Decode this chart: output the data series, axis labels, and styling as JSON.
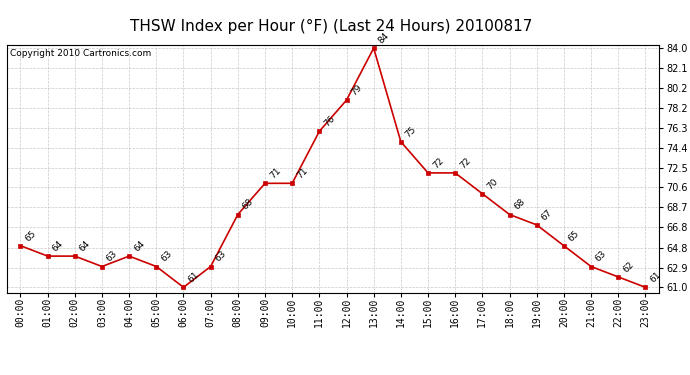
{
  "title": "THSW Index per Hour (°F) (Last 24 Hours) 20100817",
  "copyright": "Copyright 2010 Cartronics.com",
  "hours": [
    "00:00",
    "01:00",
    "02:00",
    "03:00",
    "04:00",
    "05:00",
    "06:00",
    "07:00",
    "08:00",
    "09:00",
    "10:00",
    "11:00",
    "12:00",
    "13:00",
    "14:00",
    "15:00",
    "16:00",
    "17:00",
    "18:00",
    "19:00",
    "20:00",
    "21:00",
    "22:00",
    "23:00"
  ],
  "values": [
    65,
    64,
    64,
    63,
    64,
    63,
    61,
    63,
    68,
    71,
    71,
    76,
    79,
    84,
    75,
    72,
    72,
    70,
    68,
    67,
    65,
    63,
    62,
    61
  ],
  "line_color": "#cc0000",
  "marker_color": "#cc0000",
  "bg_color": "#ffffff",
  "grid_color": "#bbbbbb",
  "ylim_min": 61.0,
  "ylim_max": 84.0,
  "yticks": [
    61.0,
    62.9,
    64.8,
    66.8,
    68.7,
    70.6,
    72.5,
    74.4,
    76.3,
    78.2,
    80.2,
    82.1,
    84.0
  ],
  "title_fontsize": 11,
  "label_fontsize": 6.5,
  "tick_fontsize": 7,
  "copyright_fontsize": 6.5
}
